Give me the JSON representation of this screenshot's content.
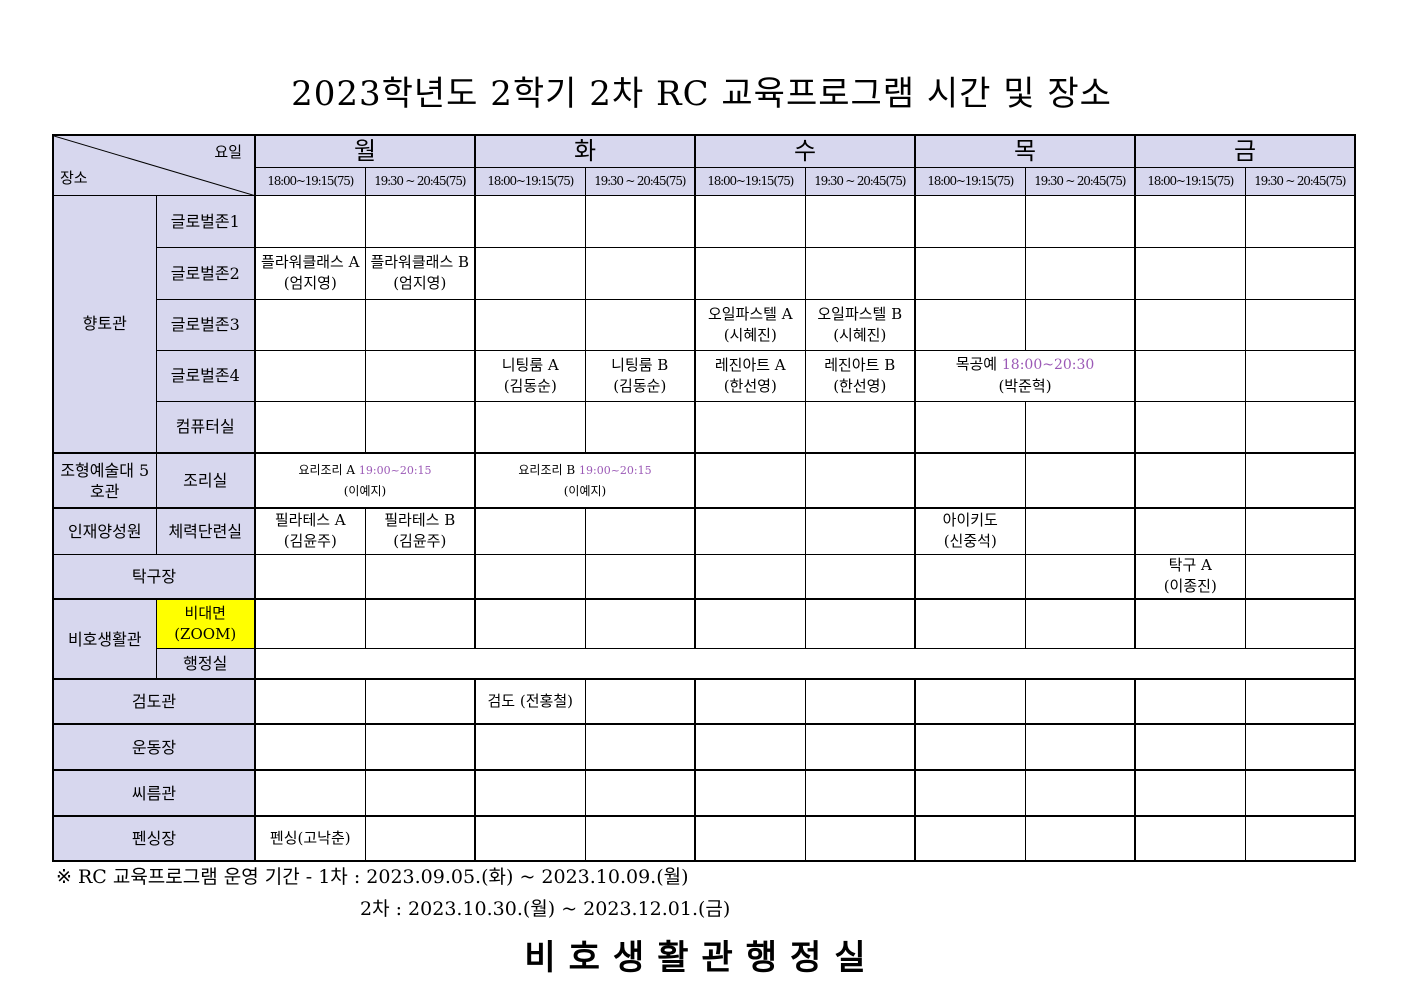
{
  "title": "2023학년도 2학기 2차 RC 교육프로그램 시간 및 장소",
  "corner": {
    "day_label": "요일",
    "place_label": "장소"
  },
  "days": [
    "월",
    "화",
    "수",
    "목",
    "금"
  ],
  "slots": [
    "18:00~19:15(75)",
    "19:30 ~ 20:45(75)"
  ],
  "rows": [
    {
      "building": "향토관",
      "building_rows": 5,
      "room": "글로벌존1",
      "cells": [
        "",
        "",
        "",
        "",
        "",
        "",
        "",
        "",
        "",
        ""
      ]
    },
    {
      "room": "글로벌존2",
      "cells": [
        {
          "t": "플라워클래스 A",
          "p": "(엄지영)"
        },
        {
          "t": "플라워클래스 B",
          "p": "(엄지영)"
        },
        "",
        "",
        "",
        "",
        "",
        "",
        "",
        ""
      ]
    },
    {
      "room": "글로벌존3",
      "cells": [
        "",
        "",
        "",
        "",
        {
          "t": "오일파스텔 A",
          "p": "(시혜진)"
        },
        {
          "t": "오일파스텔 B",
          "p": "(시혜진)"
        },
        "",
        "",
        "",
        ""
      ]
    },
    {
      "room": "글로벌존4",
      "cells": [
        "",
        "",
        {
          "t": "니팅룸 A",
          "p": "(김동순)"
        },
        {
          "t": "니팅룸 B",
          "p": "(김동순)"
        },
        {
          "t": "레진아트 A",
          "p": "(한선영)"
        },
        {
          "t": "레진아트 B",
          "p": "(한선영)"
        },
        {
          "t": "목공예",
          "time": "18:00~20:30",
          "p": "(박준혁)",
          "span": 2
        },
        "",
        ""
      ]
    },
    {
      "room": "컴퓨터실",
      "cells": [
        "",
        "",
        "",
        "",
        "",
        "",
        "",
        "",
        "",
        ""
      ]
    },
    {
      "building": "조형예술대 5호관",
      "building_rows": 1,
      "room": "조리실",
      "thick": true,
      "cells": [
        {
          "t": "요리조리 A",
          "time": "19:00~20:15",
          "p": "(이예지)",
          "span": 2,
          "small": true
        },
        {
          "t": "요리조리 B",
          "time": "19:00~20:15",
          "p": "(이예지)",
          "span": 2,
          "small": true
        },
        "",
        "",
        "",
        "",
        "",
        ""
      ]
    },
    {
      "building": "인재양성원",
      "building_rows": 1,
      "room": "체력단련실",
      "thick": true,
      "cells": [
        {
          "t": "필라테스 A",
          "p": "(김윤주)"
        },
        {
          "t": "필라테스 B",
          "p": "(김윤주)"
        },
        "",
        "",
        "",
        "",
        {
          "t": "아이키도",
          "p": "(신중석)"
        },
        "",
        "",
        ""
      ]
    },
    {
      "merged": "탁구장",
      "cells": [
        "",
        "",
        "",
        "",
        "",
        "",
        "",
        "",
        {
          "t": "탁구 A",
          "p": "(이종진)"
        },
        ""
      ]
    },
    {
      "building": "비호생활관",
      "building_rows": 2,
      "room": "비대면 (ZOOM)",
      "zoom": true,
      "thick": true,
      "cells": [
        "",
        "",
        "",
        "",
        "",
        "",
        "",
        "",
        "",
        ""
      ]
    },
    {
      "room": "행정실",
      "cells": [
        {
          "t": "",
          "span": 10
        }
      ]
    },
    {
      "merged": "검도관",
      "thick": true,
      "cells": [
        "",
        "",
        {
          "t": "검도 (전홍철)"
        },
        "",
        "",
        "",
        "",
        "",
        "",
        ""
      ]
    },
    {
      "merged": "운동장",
      "thick": true,
      "cells": [
        "",
        "",
        "",
        "",
        "",
        "",
        "",
        "",
        "",
        ""
      ]
    },
    {
      "merged": "씨름관",
      "thick": true,
      "cells": [
        "",
        "",
        "",
        "",
        "",
        "",
        "",
        "",
        "",
        ""
      ]
    },
    {
      "merged": "펜싱장",
      "thick": true,
      "cells": [
        {
          "t": "펜싱(고낙춘)"
        },
        "",
        "",
        "",
        "",
        "",
        "",
        "",
        "",
        ""
      ]
    }
  ],
  "footnote": {
    "line1": "※ RC 교육프로그램 운영 기간 - 1차 : 2023.09.05.(화) ~ 2023.10.09.(월)",
    "line2": "2차 : 2023.10.30.(월) ~ 2023.12.01.(금)"
  },
  "office": "비호생활관행정실",
  "colors": {
    "header_bg": "#d7d7ee",
    "zoom_highlight": "#ffff00",
    "time_text": "#9b59b6"
  }
}
